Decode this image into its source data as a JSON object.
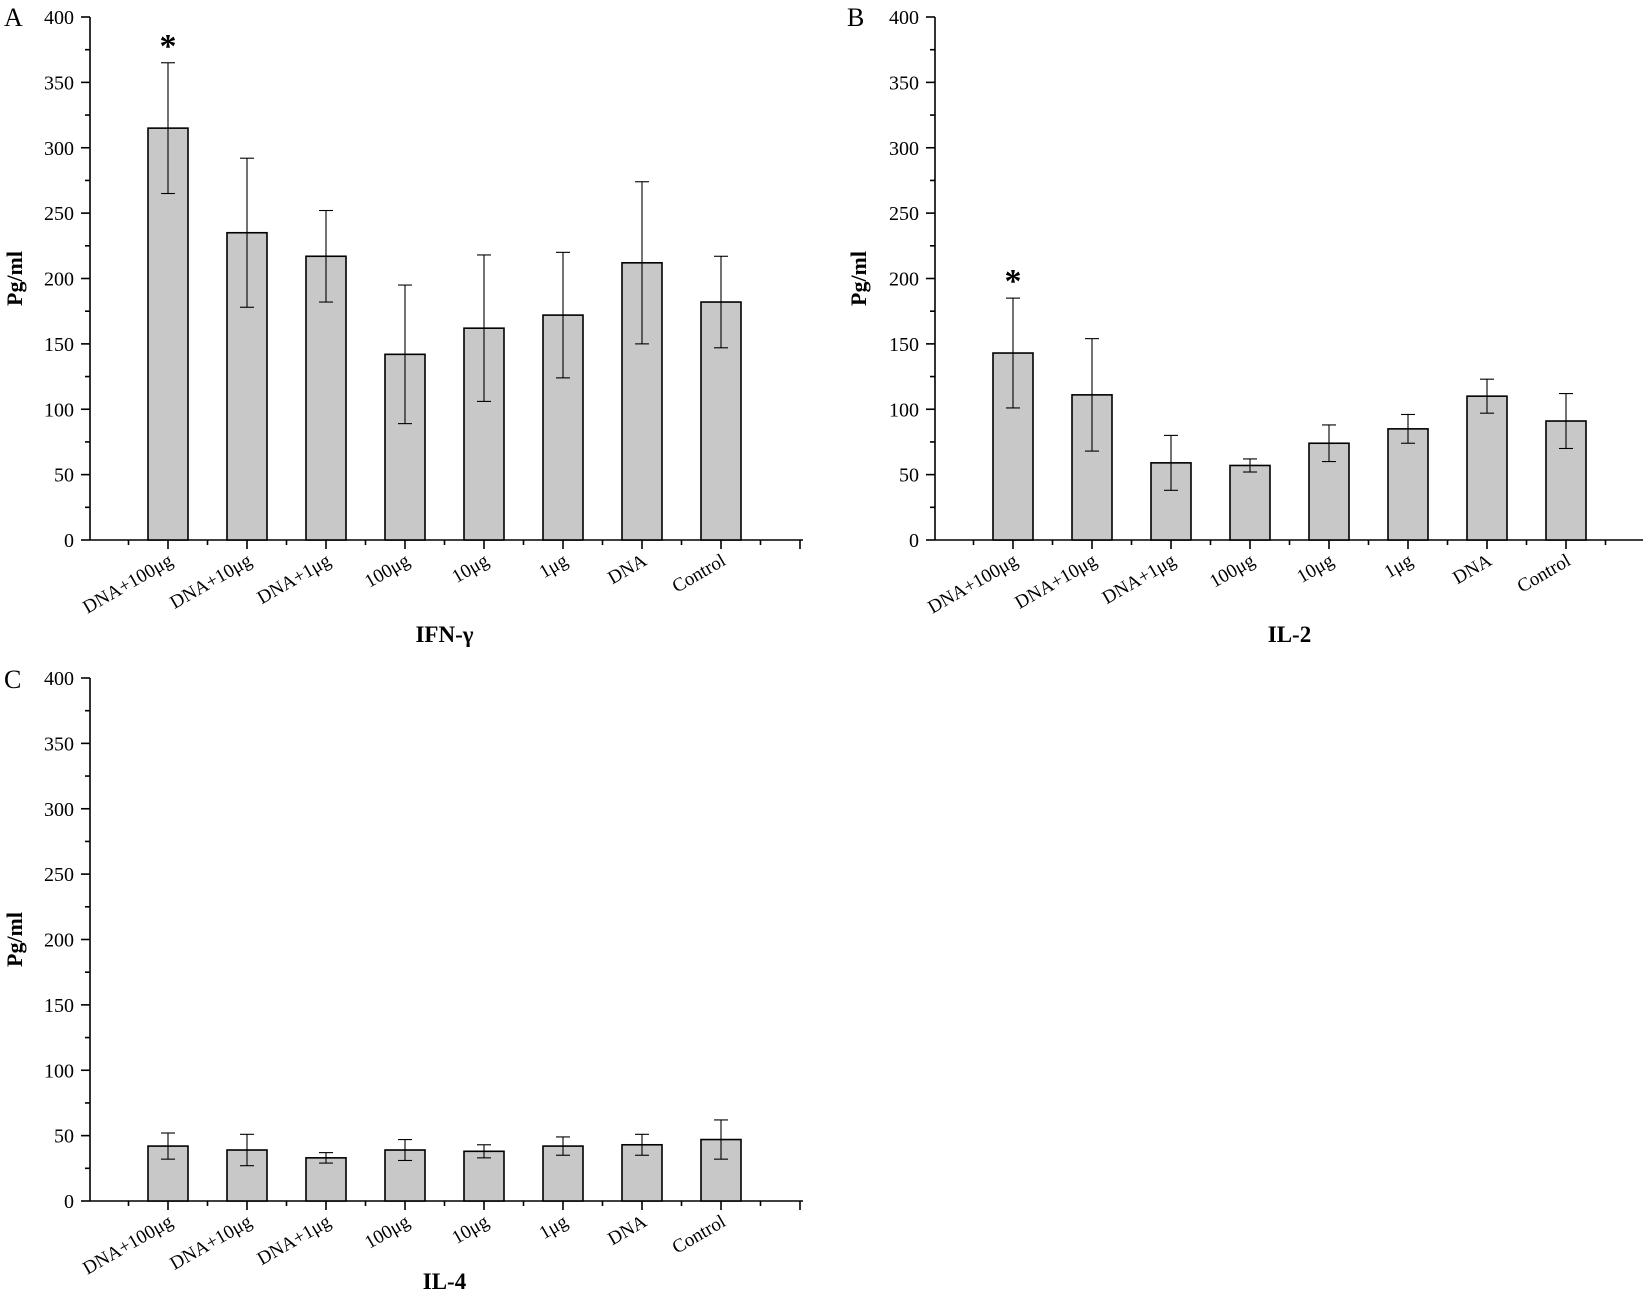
{
  "chart_data": [
    {
      "type": "bar",
      "panel": "A",
      "categories": [
        "DNA+100μg",
        "DNA+10μg",
        "DNA+1μg",
        "100μg",
        "10μg",
        "1μg",
        "DNA",
        "Control"
      ],
      "values": [
        315,
        235,
        217,
        142,
        162,
        172,
        212,
        182
      ],
      "errors": [
        50,
        57,
        35,
        53,
        56,
        48,
        62,
        35
      ],
      "annotations": [
        {
          "category_index": 0,
          "text": "*"
        }
      ],
      "xlabel": "IFN-γ",
      "ylabel": "Pg/ml",
      "ylim": [
        0,
        400
      ],
      "yticks": [
        "0",
        "50",
        "100",
        "150",
        "200",
        "250",
        "300",
        "350",
        "400"
      ],
      "grid": false
    },
    {
      "type": "bar",
      "panel": "B",
      "categories": [
        "DNA+100μg",
        "DNA+10μg",
        "DNA+1μg",
        "100μg",
        "10μg",
        "1μg",
        "DNA",
        "Control"
      ],
      "values": [
        143,
        111,
        59,
        57,
        74,
        85,
        110,
        91
      ],
      "errors": [
        42,
        43,
        21,
        5,
        14,
        11,
        13,
        21
      ],
      "annotations": [
        {
          "category_index": 0,
          "text": "*"
        }
      ],
      "xlabel": "IL-2",
      "ylabel": "Pg/ml",
      "ylim": [
        0,
        400
      ],
      "yticks": [
        "0",
        "50",
        "100",
        "150",
        "200",
        "250",
        "300",
        "350",
        "400"
      ],
      "grid": false
    },
    {
      "type": "bar",
      "panel": "C",
      "categories": [
        "DNA+100μg",
        "DNA+10μg",
        "DNA+1μg",
        "100μg",
        "10μg",
        "1μg",
        "DNA",
        "Control"
      ],
      "values": [
        42,
        39,
        33,
        39,
        38,
        42,
        43,
        47
      ],
      "errors": [
        10,
        12,
        4,
        8,
        5,
        7,
        8,
        15
      ],
      "annotations": [],
      "xlabel": "IL-4",
      "ylabel": "Pg/ml",
      "ylim": [
        0,
        400
      ],
      "yticks": [
        "0",
        "50",
        "100",
        "150",
        "200",
        "250",
        "300",
        "350",
        "400"
      ],
      "grid": false
    }
  ]
}
